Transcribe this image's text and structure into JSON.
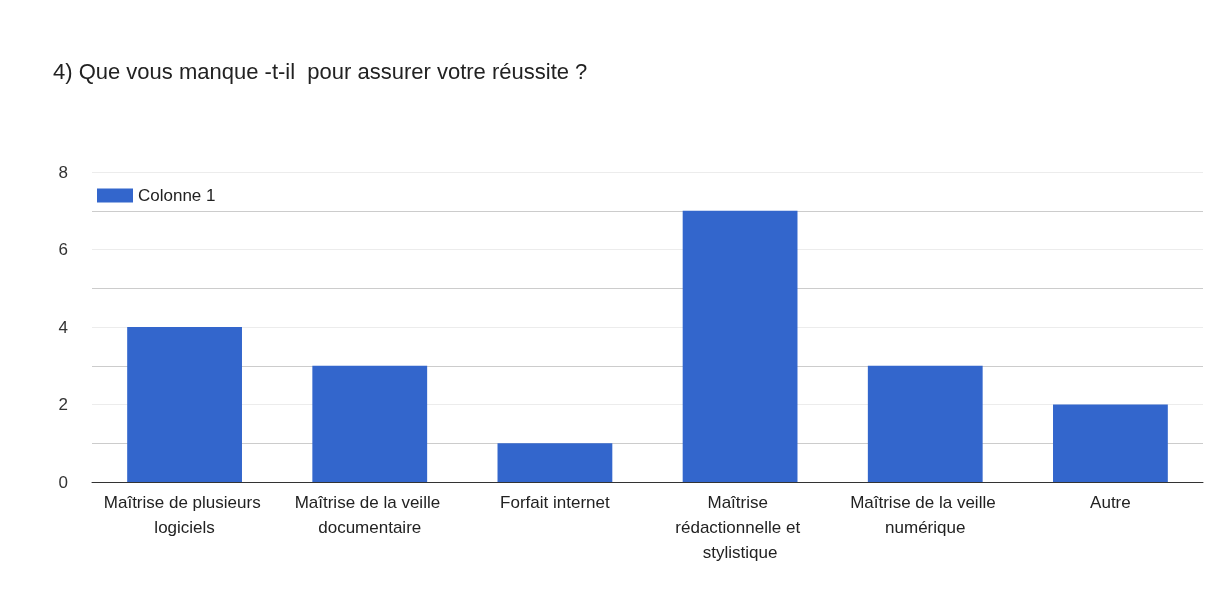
{
  "chart_data": {
    "type": "bar",
    "title": "4) Que vous manque -t-il  pour assurer votre réussite ?",
    "categories": [
      "Maîtrise de plusieurs logiciels",
      "Maîtrise de la veille documentaire",
      "Forfait internet",
      "Maîtrise rédactionnelle et stylistique",
      "Maîtrise de la veille numérique",
      "Autre"
    ],
    "series": [
      {
        "name": "Colonne 1",
        "color": "#3366cc",
        "values": [
          4,
          3,
          1,
          7,
          3,
          2
        ]
      }
    ],
    "ylim": [
      0,
      8
    ],
    "yticks": [
      0,
      {
        "value": 1,
        "label": null
      },
      2,
      {
        "value": 3,
        "label": null
      },
      4,
      {
        "value": 5,
        "label": null
      },
      6,
      {
        "value": 7,
        "label": null
      },
      8
    ],
    "grid": true,
    "legend": "top left"
  }
}
